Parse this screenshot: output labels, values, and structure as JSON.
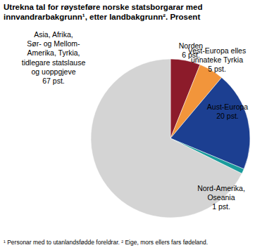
{
  "chart_data": {
    "type": "pie",
    "title": "Utrekna tal for røysteføre norske statsborgarar med innvandrarbakgrunn¹, etter landbakgrunn². Prosent",
    "footnote": "¹ Personar med to utanlandsfødde foreldrar. ² Eige, mors ellers fars fødeland.",
    "categories": [
      "Norden",
      "Vest-Europa elles unnateke Tyrkia",
      "Aust-Europa",
      "Nord-Amerika, Oseania",
      "Asia, Afrika, Sør- og Mellom-Amerika, Tyrkia, tidlegare statslause og uoppgjeve"
    ],
    "values": [
      6,
      5,
      20,
      1,
      67
    ],
    "value_labels": [
      "6 pst.",
      "5 pst.",
      "20 pst.",
      "1 pst.",
      "67 pst."
    ],
    "colors": [
      "#8c1b2a",
      "#f2953b",
      "#1c3f91",
      "#1a9c9c",
      "#d4d4d4"
    ],
    "data_labels": true
  }
}
